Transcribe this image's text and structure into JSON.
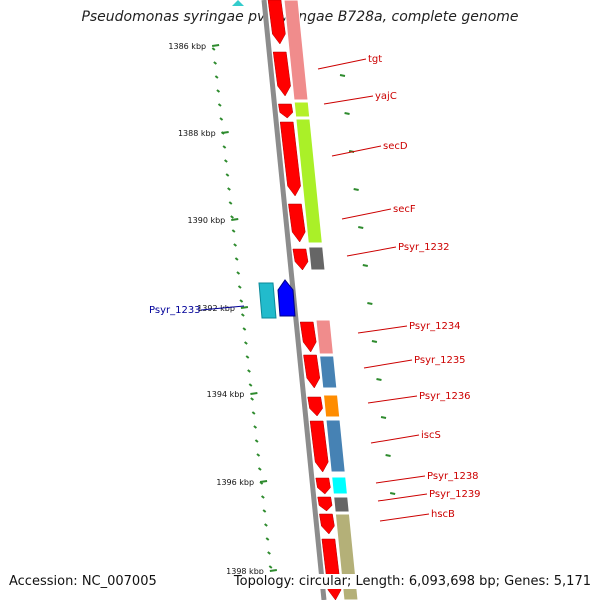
{
  "title": "Pseudomonas syringae pv. syringae B728a, complete genome",
  "footer": {
    "accession": "Accession: NC_007005",
    "summary": "Topology: circular; Length: 6,093,698 bp; Genes: 5,171"
  },
  "colors": {
    "backbone": "#8c8c8c",
    "forward_gene": "#ff0000",
    "reverse_gene": "#0000ff",
    "label_forward": "#cc0000",
    "label_reverse": "#000099",
    "tick": "#2e8b2e",
    "reverse_feature": "#00cccc"
  },
  "scale_ticks": [
    {
      "label": "1386 kbp"
    },
    {
      "label": "1388 kbp"
    },
    {
      "label": "1390 kbp"
    },
    {
      "label": "1392 kbp"
    },
    {
      "label": "1394 kbp"
    },
    {
      "label": "1396 kbp"
    },
    {
      "label": "1398 kbp"
    }
  ],
  "gene_labels": [
    {
      "name": "tgt",
      "strand": "forward"
    },
    {
      "name": "yajC",
      "strand": "forward"
    },
    {
      "name": "secD",
      "strand": "forward"
    },
    {
      "name": "secF",
      "strand": "forward"
    },
    {
      "name": "Psyr_1232",
      "strand": "forward"
    },
    {
      "name": "Psyr_1233",
      "strand": "reverse"
    },
    {
      "name": "Psyr_1234",
      "strand": "forward"
    },
    {
      "name": "Psyr_1235",
      "strand": "forward"
    },
    {
      "name": "Psyr_1236",
      "strand": "forward"
    },
    {
      "name": "iscS",
      "strand": "forward"
    },
    {
      "name": "Psyr_1238",
      "strand": "forward"
    },
    {
      "name": "Psyr_1239",
      "strand": "forward"
    },
    {
      "name": "hscB",
      "strand": "forward"
    }
  ]
}
